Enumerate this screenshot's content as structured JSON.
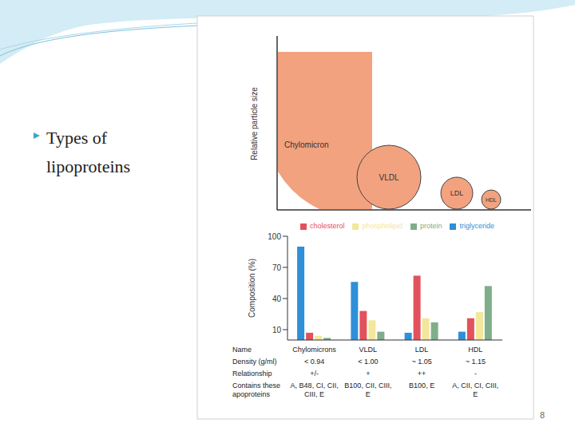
{
  "slide": {
    "heading": "Types of lipoproteins",
    "page": "8"
  },
  "size_diagram": {
    "axis_label": "Relative particle size",
    "color": "#f2a27f",
    "particles": [
      "Chylomicron",
      "VLDL",
      "LDL",
      "HDL"
    ]
  },
  "chart_data": {
    "type": "bar",
    "y_label": "Composition (%)",
    "categories": [
      "Chylomicrons",
      "VLDL",
      "LDL",
      "HDL"
    ],
    "series": [
      {
        "name": "triglyceride",
        "color": "#2f8fd8",
        "values": [
          90,
          56,
          7,
          8
        ]
      },
      {
        "name": "cholesterol",
        "color": "#e2525c",
        "values": [
          7,
          28,
          62,
          21
        ]
      },
      {
        "name": "phospholipid",
        "color": "#f3e79a",
        "values": [
          4,
          19,
          21,
          27
        ]
      },
      {
        "name": "protein",
        "color": "#7fae8a",
        "values": [
          2,
          8,
          17,
          52
        ]
      }
    ],
    "ylim": [
      0,
      100
    ],
    "yticks": [
      10,
      40,
      70,
      100
    ],
    "grid": false,
    "legend": "top",
    "tick_labels": "y"
  },
  "table": {
    "row_labels": [
      "Name",
      "Density (g/ml)",
      "Relationship",
      "Contains these apoproteins"
    ],
    "rows": [
      [
        "< 0.94",
        "< 1.00",
        "~ 1.05",
        "~ 1.15"
      ],
      [
        "+/-",
        "+",
        "++",
        "-"
      ],
      [
        "A, B48, CI, CII, CIII, E",
        "B100, CII, CIII, E",
        "B100, E",
        "A, CII, CI, CIII, E"
      ]
    ]
  }
}
